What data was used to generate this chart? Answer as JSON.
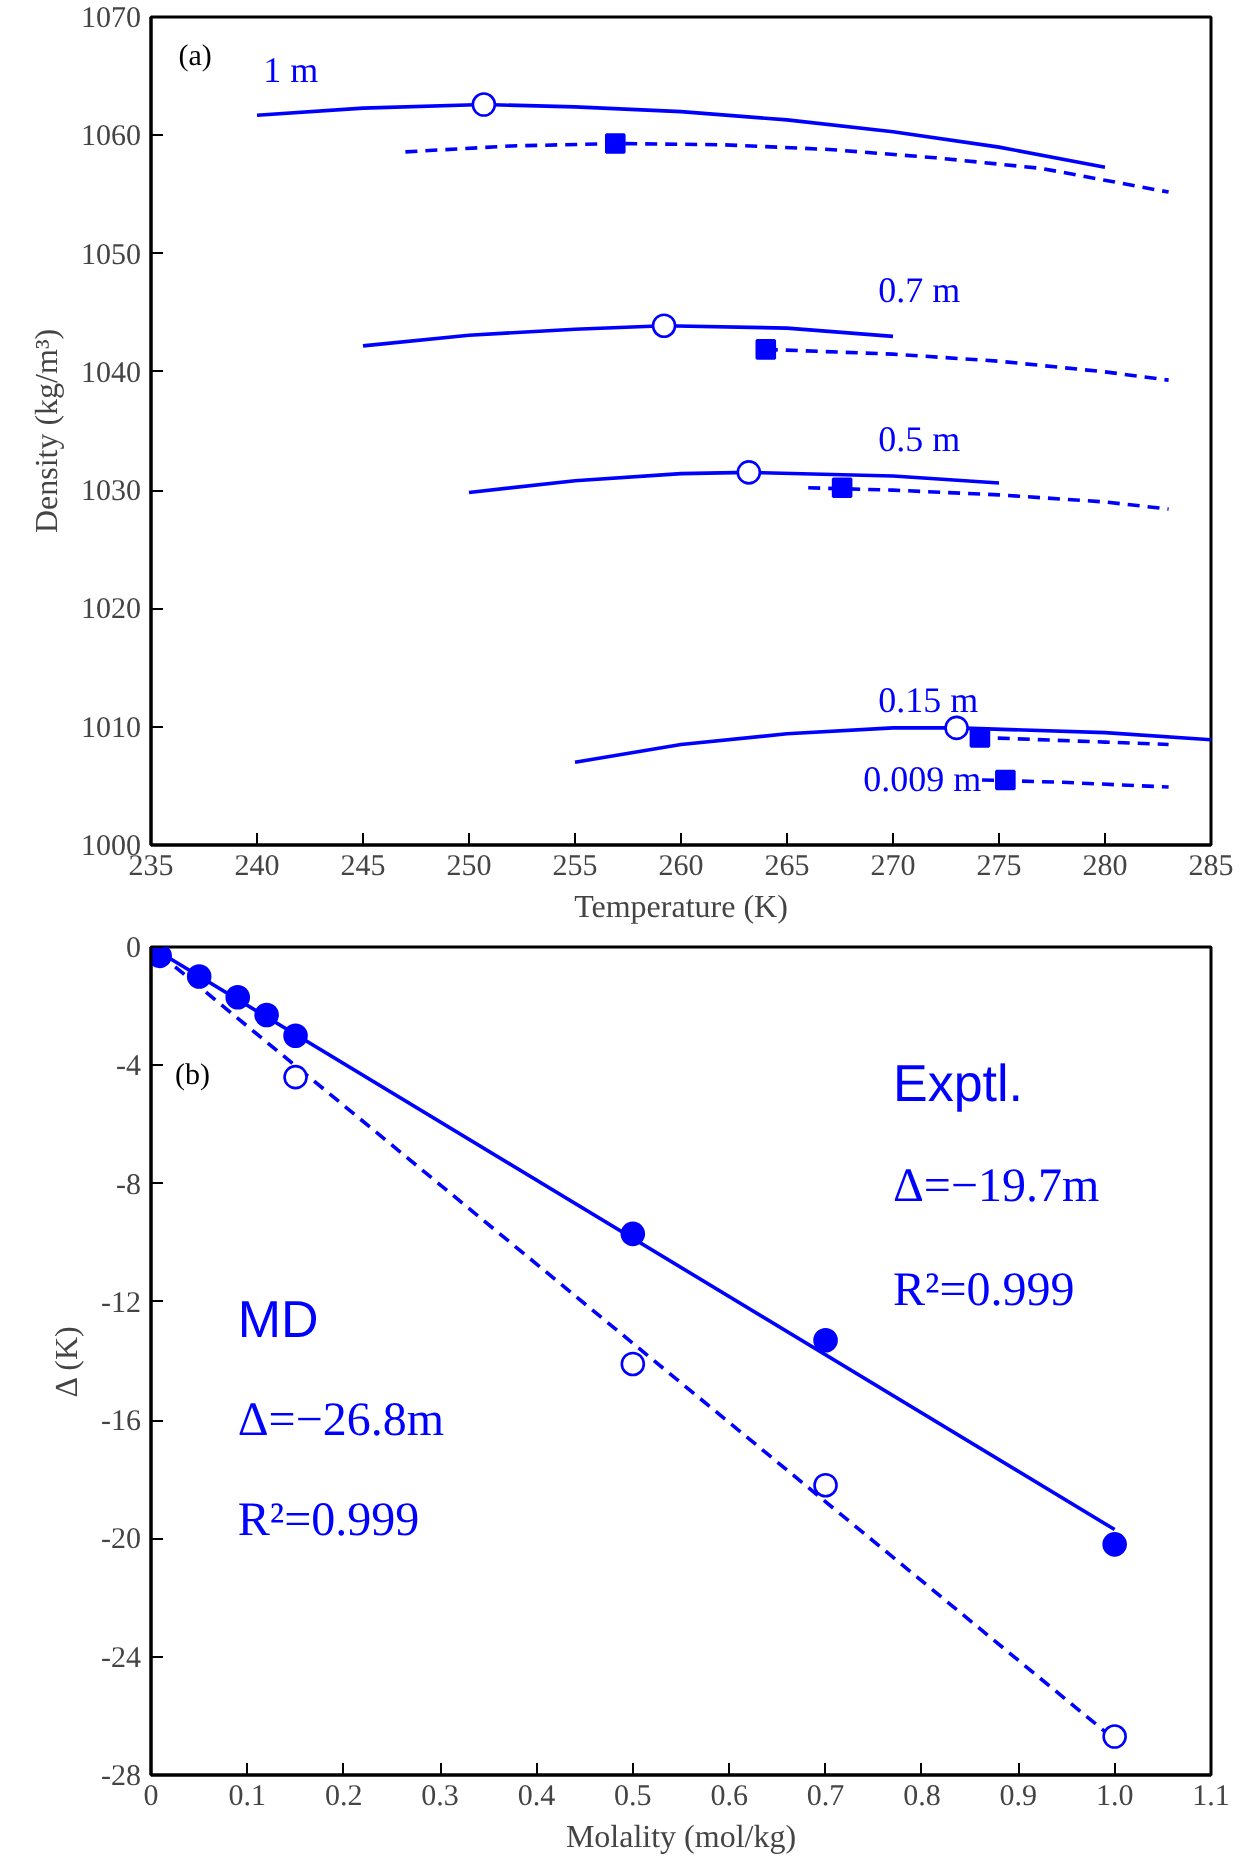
{
  "chart_data": [
    {
      "type": "line",
      "xlabel": "Temperature (K)",
      "ylabel": "Density (kg/m³)",
      "xlim": [
        235,
        285
      ],
      "ylim": [
        1000,
        1070
      ],
      "xticks": [
        235,
        240,
        245,
        250,
        255,
        260,
        265,
        270,
        275,
        280,
        285
      ],
      "yticks": [
        1000,
        1010,
        1020,
        1030,
        1040,
        1050,
        1060,
        1070
      ],
      "series": [
        {
          "line_style": "solid",
          "color": "#0000ff",
          "x": [
            240,
            245,
            250.7,
            255,
            260,
            265,
            270,
            275,
            280
          ],
          "values": [
            1061.7,
            1062.3,
            1062.6,
            1062.4,
            1062.0,
            1061.3,
            1060.3,
            1059.0,
            1057.3
          ]
        },
        {
          "line_style": "dashed",
          "color": "#0000ff",
          "x": [
            247,
            252,
            257,
            262,
            267,
            272,
            277,
            283
          ],
          "values": [
            1058.6,
            1059.1,
            1059.3,
            1059.2,
            1058.8,
            1058.1,
            1057.2,
            1055.2
          ]
        },
        {
          "line_style": "solid",
          "color": "#0000ff",
          "x": [
            245,
            250,
            255,
            259.2,
            265,
            270
          ],
          "values": [
            1042.2,
            1043.1,
            1043.6,
            1043.9,
            1043.7,
            1043.0
          ]
        },
        {
          "line_style": "dashed",
          "color": "#0000ff",
          "x": [
            264,
            270,
            275,
            280,
            283
          ],
          "values": [
            1041.9,
            1041.5,
            1040.9,
            1040.0,
            1039.3
          ]
        },
        {
          "line_style": "solid",
          "color": "#0000ff",
          "x": [
            250,
            255,
            260,
            263.2,
            270,
            275
          ],
          "values": [
            1029.8,
            1030.8,
            1031.4,
            1031.5,
            1031.2,
            1030.6
          ]
        },
        {
          "line_style": "dashed",
          "color": "#0000ff",
          "x": [
            266,
            270,
            275,
            280,
            283
          ],
          "values": [
            1030.2,
            1030.0,
            1029.6,
            1029.0,
            1028.4
          ]
        },
        {
          "line_style": "solid",
          "color": "#0000ff",
          "x": [
            255,
            260,
            265,
            270,
            273,
            280,
            285
          ],
          "values": [
            1007.0,
            1008.5,
            1009.4,
            1009.9,
            1009.9,
            1009.5,
            1008.9
          ]
        },
        {
          "line_style": "dashed",
          "color": "#0000ff",
          "x": [
            274,
            280,
            283
          ],
          "values": [
            1009.1,
            1008.7,
            1008.5
          ]
        },
        {
          "line_style": "dashed",
          "color": "#0000ff",
          "x": [
            274.2,
            278,
            283
          ],
          "values": [
            1005.5,
            1005.3,
            1004.9
          ]
        },
        {
          "type": "scatter",
          "marker": "circle",
          "color": "#0000ff",
          "x": [
            250.7,
            259.2,
            263.2,
            273.0
          ],
          "values": [
            1062.6,
            1043.9,
            1031.5,
            1009.9
          ]
        },
        {
          "type": "scatter",
          "marker": "square",
          "color": "#0000ff",
          "x": [
            256.9,
            264.0,
            267.6,
            274.1,
            275.3
          ],
          "values": [
            1059.3,
            1041.9,
            1030.2,
            1009.1,
            1005.5
          ]
        }
      ],
      "annotations": [
        "(a)",
        "1 m",
        "0.7 m",
        "0.5 m",
        "0.15 m",
        "0.009 m"
      ]
    },
    {
      "type": "scatter",
      "xlabel": "Molality (mol/kg)",
      "ylabel": "Δ (K)",
      "xlim": [
        0,
        1.1
      ],
      "ylim": [
        -28,
        0
      ],
      "xticks": [
        0,
        0.1,
        0.2,
        0.3,
        0.4,
        0.5,
        0.6,
        0.7,
        0.8,
        0.9,
        {
          "value": 1.0,
          "label": "1.0"
        },
        1.1
      ],
      "yticks": [
        -28,
        -24,
        -20,
        -16,
        -12,
        -8,
        -4,
        0
      ],
      "series": [
        {
          "type": "line",
          "line_style": "solid",
          "color": "#0000ff",
          "x": [
            0.009,
            1.0
          ],
          "values": [
            -0.18,
            -19.7
          ]
        },
        {
          "type": "line",
          "line_style": "dashed",
          "color": "#0000ff",
          "x": [
            0.009,
            1.0
          ],
          "values": [
            -0.24,
            -26.8
          ]
        },
        {
          "marker": "circle",
          "color": "#0000ff",
          "x": [
            0.009,
            0.05,
            0.09,
            0.12,
            0.15,
            0.5,
            0.7,
            1.0
          ],
          "values": [
            -0.3,
            -1.0,
            -1.7,
            -2.3,
            -3.0,
            -9.7,
            -13.3,
            -20.2
          ]
        },
        {
          "marker": "circle",
          "color": "#0000ff",
          "x": [
            0.15,
            0.5,
            0.7,
            1.0
          ],
          "values": [
            -4.4,
            -14.1,
            -18.2,
            -26.7
          ]
        }
      ],
      "annotations": [
        "(b)",
        "Exptl.",
        "Δ=−19.7m",
        "R²=0.999",
        "MD",
        "Δ=−26.8m",
        "R²=0.999"
      ]
    }
  ]
}
